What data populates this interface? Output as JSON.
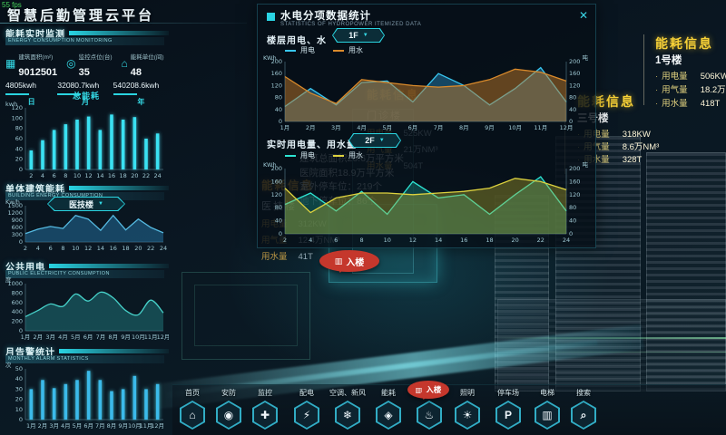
{
  "header": {
    "fps": "55 fps",
    "title": "智慧后勤管理云平台"
  },
  "ui": {
    "caret": "▼",
    "close": "✕"
  },
  "left_panel": {
    "monitor_section": {
      "title": "能耗实时监测",
      "subtitle": "ENERGY CONSUMPTION MONITORING"
    },
    "stats": [
      {
        "icon": "building-area-icon",
        "glyph": "▦",
        "label": "建筑面积(m²)",
        "value": "9012501"
      },
      {
        "icon": "monitor-points-icon",
        "glyph": "◎",
        "label": "监控点位(台)",
        "value": "35"
      },
      {
        "icon": "energy-units-icon",
        "glyph": "⌂",
        "label": "能耗单位(间)",
        "value": "48"
      }
    ],
    "totals": [
      {
        "value": "4805kwh",
        "period": "日"
      },
      {
        "value": "32080.7kwh",
        "period": "月"
      },
      {
        "value": "540208.6kwh",
        "period": "年"
      }
    ],
    "building_section": {
      "title": "单体建筑能耗",
      "subtitle": "BUILDING ENERGY CONSUMPTION",
      "dropdown": "医技楼"
    },
    "public_section": {
      "title": "公共用电",
      "subtitle": "PUBLIC ELECTRICITY CONSUMPTION"
    },
    "alarm_section": {
      "title": "月告警统计",
      "subtitle": "MONTHLY ALARM STATISTICS"
    }
  },
  "modal": {
    "title": "水电分项数据统计",
    "subtitle": "STATISTICS OF HYDROPOWER ITEMIZED DATA",
    "section1": {
      "label": "楼层用电、水",
      "dropdown": "1F"
    },
    "section2": {
      "label": "实时用电量、用水量",
      "dropdown": "2F"
    }
  },
  "right_panels": [
    {
      "title": "能耗信息",
      "building": "1号楼",
      "rows": [
        {
          "label": "用电量",
          "value": "506KW"
        },
        {
          "label": "用气量",
          "value": "18.2万NM³"
        },
        {
          "label": "用水量",
          "value": "418T"
        }
      ]
    },
    {
      "title": "能耗信息",
      "building": "三号楼",
      "rows": [
        {
          "label": "用电量",
          "value": "318KW"
        },
        {
          "label": "用气量",
          "value": "8.6万NM³"
        },
        {
          "label": "用水量",
          "value": "328T"
        }
      ]
    }
  ],
  "bg_labels": {
    "outpatient": {
      "title": "能耗信息",
      "building": "门诊楼",
      "rows": [
        {
          "label": "用电量",
          "value": "525KW"
        },
        {
          "label": "用气量",
          "value": "21万NM³"
        },
        {
          "label": "用水量",
          "value": "504T"
        }
      ]
    },
    "medtech": {
      "title": "能耗信息",
      "building": "医技楼",
      "rows": [
        {
          "label": "用电量",
          "value": "312KW"
        },
        {
          "label": "用气量",
          "value": "12.4万NM³"
        },
        {
          "label": "用水量",
          "value": "41T"
        }
      ]
    },
    "hospital_info": {
      "lines": [
        "建筑总面积26.6万平方米",
        "医院面积18.9万平方米",
        "室外停车位：219个",
        "地下停车位：86个"
      ]
    }
  },
  "markers": {
    "enter_label": "入楼",
    "icon_glyph": "▥"
  },
  "nav": {
    "items": [
      {
        "key": "home",
        "label": "首页",
        "icon": "home-icon",
        "glyph": "⌂"
      },
      {
        "key": "security",
        "label": "安防",
        "icon": "camera-icon",
        "glyph": "◉"
      },
      {
        "key": "monitoring",
        "label": "监控",
        "icon": "shield-icon",
        "glyph": "✚"
      },
      {
        "key": "power-distribution",
        "label": "配电",
        "icon": "bolt-icon",
        "glyph": "⚡"
      },
      {
        "key": "hvac",
        "label": "空调、新风",
        "icon": "snowflake-icon",
        "glyph": "❄"
      },
      {
        "key": "energy",
        "label": "能耗",
        "icon": "drop-icon",
        "glyph": "◈"
      },
      {
        "key": "fire",
        "label": "消防",
        "icon": "hydrant-icon",
        "glyph": "♨"
      },
      {
        "key": "lighting",
        "label": "照明",
        "icon": "bulb-icon",
        "glyph": "☀"
      },
      {
        "key": "parking",
        "label": "停车场",
        "icon": "parking-icon",
        "glyph": "P"
      },
      {
        "key": "elevator",
        "label": "电梯",
        "icon": "elevator-icon",
        "glyph": "▥"
      },
      {
        "key": "search",
        "label": "搜索",
        "icon": "search-icon",
        "glyph": "⌕"
      }
    ]
  },
  "chart_data": [
    {
      "id": "total-energy",
      "type": "bar",
      "title": "总能耗",
      "unit": "kwh",
      "categories": [
        "2",
        "4",
        "6",
        "8",
        "10",
        "12",
        "14",
        "16",
        "18",
        "20",
        "22",
        "24"
      ],
      "values": [
        37,
        57,
        77,
        88,
        97,
        103,
        77,
        107,
        97,
        102,
        60,
        70
      ],
      "ylim": [
        0,
        120
      ],
      "yticks": [
        0,
        20,
        40,
        60,
        80,
        100,
        120
      ],
      "color": "#3ae1f2"
    },
    {
      "id": "building-energy",
      "type": "area",
      "unit": "Kw/h",
      "categories": [
        "2",
        "4",
        "6",
        "8",
        "10",
        "12",
        "14",
        "16",
        "18",
        "20",
        "22",
        "24"
      ],
      "values": [
        350,
        530,
        640,
        560,
        1100,
        950,
        480,
        1100,
        500,
        950,
        600,
        380
      ],
      "ylim": [
        0,
        1500
      ],
      "yticks": [
        0,
        300,
        600,
        900,
        1200,
        1500
      ],
      "color": "#55b9e0",
      "fill": "rgba(35,110,155,0.55)"
    },
    {
      "id": "public-electricity",
      "type": "area",
      "smooth": true,
      "unit": "度",
      "categories": [
        "1月",
        "2月",
        "3月",
        "4月",
        "5月",
        "6月",
        "7月",
        "8月",
        "9月",
        "10月",
        "11月",
        "12月"
      ],
      "values": [
        300,
        430,
        570,
        520,
        780,
        630,
        820,
        700,
        430,
        340,
        650,
        380
      ],
      "ylim": [
        0,
        1000
      ],
      "yticks": [
        0,
        200,
        400,
        600,
        800,
        1000
      ],
      "color": "#46d0c8",
      "fill": "rgba(32,122,125,0.5)"
    },
    {
      "id": "monthly-alarm",
      "type": "bar",
      "unit": "次",
      "categories": [
        "1月",
        "2月",
        "3月",
        "4月",
        "5月",
        "6月",
        "7月",
        "8月",
        "9月",
        "10月",
        "11月",
        "12月"
      ],
      "values": [
        30,
        39,
        31,
        35,
        39,
        48,
        39,
        28,
        30,
        43,
        30,
        35
      ],
      "ylim": [
        0,
        50
      ],
      "yticks": [
        0,
        10,
        20,
        30,
        40,
        50
      ],
      "color": "#3bbaea"
    },
    {
      "id": "floor-usage",
      "type": "area",
      "dual": true,
      "unit_left": "KWh",
      "unit_right": "吨",
      "categories": [
        "1月",
        "2月",
        "3月",
        "4月",
        "5月",
        "6月",
        "7月",
        "8月",
        "9月",
        "10月",
        "11月",
        "12月"
      ],
      "ylim": [
        0,
        200
      ],
      "yticks": [
        0,
        40,
        80,
        120,
        160,
        200
      ],
      "series": [
        {
          "name": "用电",
          "color": "#38c6f0",
          "fill": "rgba(40,140,190,0.45)",
          "values": [
            50,
            110,
            55,
            130,
            135,
            65,
            160,
            120,
            55,
            110,
            180,
            65
          ]
        },
        {
          "name": "用水",
          "color": "#d98a2b",
          "fill": "rgba(190,120,40,0.5)",
          "values": [
            150,
            95,
            60,
            140,
            130,
            120,
            115,
            120,
            140,
            175,
            165,
            135
          ]
        }
      ]
    },
    {
      "id": "realtime-usage",
      "type": "area",
      "dual": true,
      "unit_left": "KWh",
      "unit_right": "吨",
      "categories": [
        "2",
        "4",
        "6",
        "8",
        "10",
        "12",
        "14",
        "16",
        "18",
        "20",
        "22",
        "24"
      ],
      "ylim": [
        0,
        200
      ],
      "yticks": [
        0,
        40,
        80,
        120,
        160,
        200
      ],
      "series": [
        {
          "name": "用电",
          "color": "#2de4d2",
          "fill": "rgba(30,160,150,0.35)",
          "values": [
            90,
            125,
            70,
            130,
            60,
            160,
            110,
            120,
            60,
            120,
            175,
            70
          ]
        },
        {
          "name": "用水",
          "color": "#ddd23e",
          "fill": "rgba(180,170,45,0.38)",
          "values": [
            140,
            65,
            110,
            125,
            125,
            120,
            125,
            130,
            140,
            170,
            160,
            135
          ]
        }
      ]
    }
  ]
}
